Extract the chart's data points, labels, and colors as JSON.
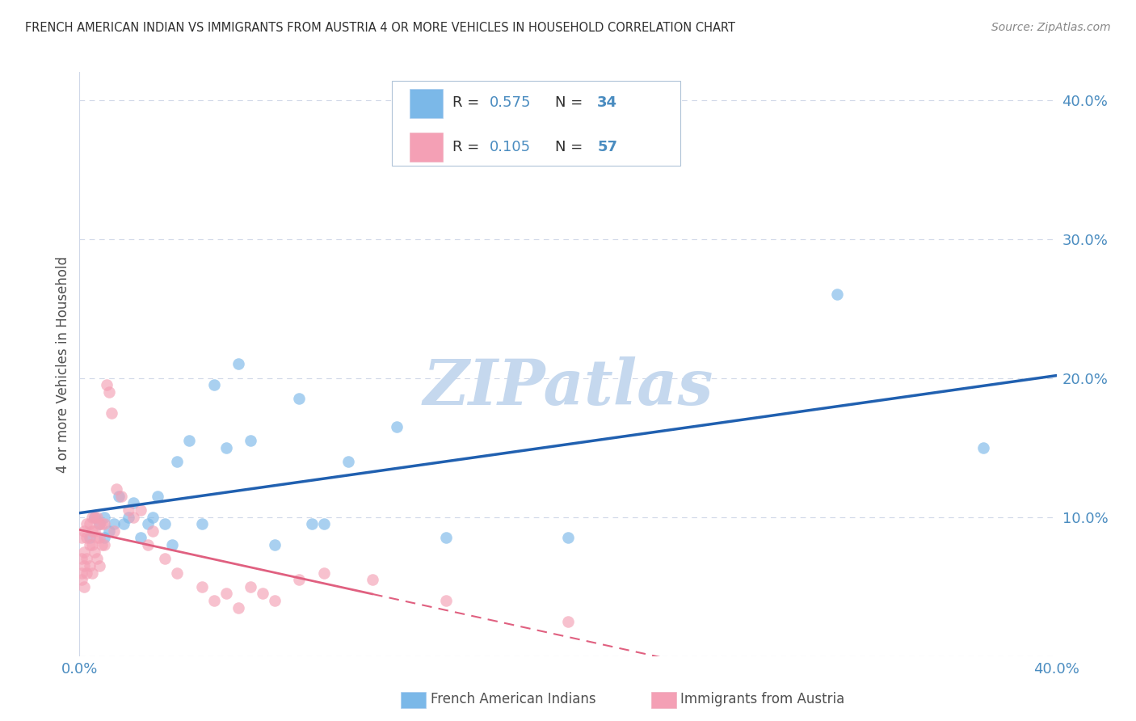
{
  "title": "FRENCH AMERICAN INDIAN VS IMMIGRANTS FROM AUSTRIA 4 OR MORE VEHICLES IN HOUSEHOLD CORRELATION CHART",
  "source": "Source: ZipAtlas.com",
  "ylabel": "4 or more Vehicles in Household",
  "xlim": [
    0.0,
    0.4
  ],
  "ylim": [
    0.0,
    0.42
  ],
  "yticks": [
    0.0,
    0.1,
    0.2,
    0.3,
    0.4
  ],
  "ytick_labels": [
    "",
    "10.0%",
    "20.0%",
    "30.0%",
    "40.0%"
  ],
  "xticks": [
    0.0,
    0.1,
    0.2,
    0.3,
    0.4
  ],
  "xtick_labels": [
    "0.0%",
    "",
    "",
    "",
    "40.0%"
  ],
  "blue_color": "#7bb8e8",
  "pink_color": "#f4a0b5",
  "line_blue_color": "#2060b0",
  "line_pink_solid_color": "#e06080",
  "line_pink_dash_color": "#e06080",
  "watermark": "ZIPatlas",
  "watermark_color": "#c5d8ee",
  "blue_scatter_x": [
    0.004,
    0.006,
    0.008,
    0.01,
    0.01,
    0.012,
    0.014,
    0.016,
    0.018,
    0.02,
    0.022,
    0.025,
    0.028,
    0.03,
    0.032,
    0.035,
    0.038,
    0.04,
    0.045,
    0.05,
    0.055,
    0.06,
    0.065,
    0.07,
    0.08,
    0.09,
    0.095,
    0.1,
    0.11,
    0.13,
    0.15,
    0.2,
    0.31,
    0.37
  ],
  "blue_scatter_y": [
    0.085,
    0.1,
    0.095,
    0.1,
    0.085,
    0.09,
    0.095,
    0.115,
    0.095,
    0.1,
    0.11,
    0.085,
    0.095,
    0.1,
    0.115,
    0.095,
    0.08,
    0.14,
    0.155,
    0.095,
    0.195,
    0.15,
    0.21,
    0.155,
    0.08,
    0.185,
    0.095,
    0.095,
    0.14,
    0.165,
    0.085,
    0.085,
    0.26,
    0.15
  ],
  "pink_scatter_x": [
    0.001,
    0.001,
    0.001,
    0.001,
    0.002,
    0.002,
    0.002,
    0.002,
    0.003,
    0.003,
    0.003,
    0.003,
    0.004,
    0.004,
    0.004,
    0.005,
    0.005,
    0.005,
    0.005,
    0.006,
    0.006,
    0.006,
    0.007,
    0.007,
    0.007,
    0.008,
    0.008,
    0.008,
    0.009,
    0.009,
    0.01,
    0.01,
    0.011,
    0.012,
    0.013,
    0.014,
    0.015,
    0.017,
    0.02,
    0.022,
    0.025,
    0.028,
    0.03,
    0.035,
    0.04,
    0.05,
    0.055,
    0.06,
    0.065,
    0.07,
    0.075,
    0.08,
    0.09,
    0.1,
    0.12,
    0.15,
    0.2
  ],
  "pink_scatter_y": [
    0.07,
    0.085,
    0.06,
    0.055,
    0.09,
    0.075,
    0.065,
    0.05,
    0.085,
    0.095,
    0.07,
    0.06,
    0.095,
    0.08,
    0.065,
    0.1,
    0.09,
    0.08,
    0.06,
    0.1,
    0.09,
    0.075,
    0.1,
    0.085,
    0.07,
    0.095,
    0.085,
    0.065,
    0.095,
    0.08,
    0.095,
    0.08,
    0.195,
    0.19,
    0.175,
    0.09,
    0.12,
    0.115,
    0.105,
    0.1,
    0.105,
    0.08,
    0.09,
    0.07,
    0.06,
    0.05,
    0.04,
    0.045,
    0.035,
    0.05,
    0.045,
    0.04,
    0.055,
    0.06,
    0.055,
    0.04,
    0.025
  ],
  "background_color": "#ffffff",
  "grid_color": "#d0d8e8",
  "title_color": "#303030",
  "axis_label_color": "#505050",
  "tick_label_color": "#4a8cc0",
  "bottom_legend_label1": "French American Indians",
  "bottom_legend_label2": "Immigrants from Austria"
}
